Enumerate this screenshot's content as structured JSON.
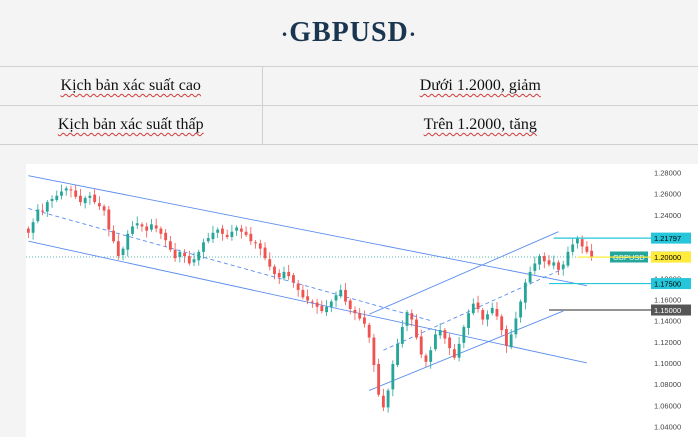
{
  "header": {
    "title": "GBPUSD",
    "dot_left": "·",
    "dot_right": "·"
  },
  "scenarios": [
    {
      "label": "Kịch bản xác suất cao",
      "value": "Dưới  1.2000,  giảm"
    },
    {
      "label": "Kịch  bản  xác  suất  thấp",
      "value": "Trên  1.2000,  tăng"
    }
  ],
  "chart_data": {
    "type": "candlestick",
    "symbol": "GBPUSD",
    "yticks": [
      "1.28000",
      "1.26000",
      "1.24000",
      "1.22000",
      "1.20000",
      "1.18000",
      "1.16000",
      "1.14000",
      "1.12000",
      "1.10000",
      "1.08000",
      "1.06000",
      "1.04000"
    ],
    "ytick_values": [
      1.28,
      1.26,
      1.24,
      1.22,
      1.2,
      1.18,
      1.16,
      1.14,
      1.12,
      1.1,
      1.08,
      1.06,
      1.04
    ],
    "ylim": [
      1.03,
      1.288
    ],
    "current_price": 1.20011,
    "levels": [
      {
        "value": 1.21797,
        "label": "1.21797",
        "color": "#26c6da",
        "text_color": "#000000"
      },
      {
        "value": 1.20011,
        "label": "1.20011",
        "color": "#26a69a",
        "text_color": "#ffffff",
        "symbol_tag": "GBPUSD"
      },
      {
        "value": 1.2,
        "label": "1.20000",
        "color": "#ffeb3b",
        "text_color": "#000000"
      },
      {
        "value": 1.175,
        "label": "1.17500",
        "color": "#26c6da",
        "text_color": "#000000"
      },
      {
        "value": 1.15,
        "label": "1.15000",
        "color": "#555555",
        "text_color": "#ffffff"
      }
    ],
    "closes": [
      1.223,
      1.233,
      1.245,
      1.243,
      1.252,
      1.255,
      1.258,
      1.262,
      1.265,
      1.263,
      1.257,
      1.252,
      1.256,
      1.258,
      1.252,
      1.248,
      1.244,
      1.226,
      1.215,
      1.201,
      1.208,
      1.222,
      1.229,
      1.232,
      1.229,
      1.225,
      1.231,
      1.227,
      1.222,
      1.216,
      1.207,
      1.199,
      1.205,
      1.201,
      1.194,
      1.198,
      1.205,
      1.214,
      1.218,
      1.223,
      1.226,
      1.222,
      1.219,
      1.224,
      1.228,
      1.224,
      1.221,
      1.215,
      1.213,
      1.208,
      1.199,
      1.191,
      1.184,
      1.181,
      1.186,
      1.182,
      1.176,
      1.169,
      1.162,
      1.159,
      1.157,
      1.153,
      1.149,
      1.153,
      1.158,
      1.164,
      1.169,
      1.158,
      1.151,
      1.147,
      1.142,
      1.137,
      1.124,
      1.098,
      1.07,
      1.058,
      1.074,
      1.099,
      1.118,
      1.134,
      1.148,
      1.141,
      1.124,
      1.108,
      1.101,
      1.112,
      1.127,
      1.131,
      1.123,
      1.114,
      1.105,
      1.118,
      1.134,
      1.147,
      1.156,
      1.151,
      1.141,
      1.146,
      1.152,
      1.144,
      1.131,
      1.116,
      1.127,
      1.142,
      1.158,
      1.176,
      1.186,
      1.194,
      1.201,
      1.196,
      1.193,
      1.195,
      1.188,
      1.193,
      1.205,
      1.212,
      1.218,
      1.21,
      1.205,
      1.2
    ],
    "channels": [
      {
        "points": [
          [
            0,
            1.277
          ],
          [
            118,
            1.173
          ]
        ]
      },
      {
        "points": [
          [
            0,
            1.215
          ],
          [
            118,
            1.1
          ]
        ]
      },
      {
        "points": [
          [
            0,
            1.246
          ],
          [
            85,
            1.14
          ]
        ],
        "dashed": true
      },
      {
        "points": [
          [
            72,
            1.146
          ],
          [
            112,
            1.224
          ]
        ]
      },
      {
        "points": [
          [
            72,
            1.074
          ],
          [
            113,
            1.149
          ]
        ]
      },
      {
        "points": [
          [
            75,
            1.112
          ],
          [
            113,
            1.189
          ]
        ],
        "dashed": true
      }
    ]
  },
  "colors": {
    "up": "#26a69a",
    "down": "#ef5350",
    "channel": "#5b8def",
    "title": "#1a3550"
  }
}
